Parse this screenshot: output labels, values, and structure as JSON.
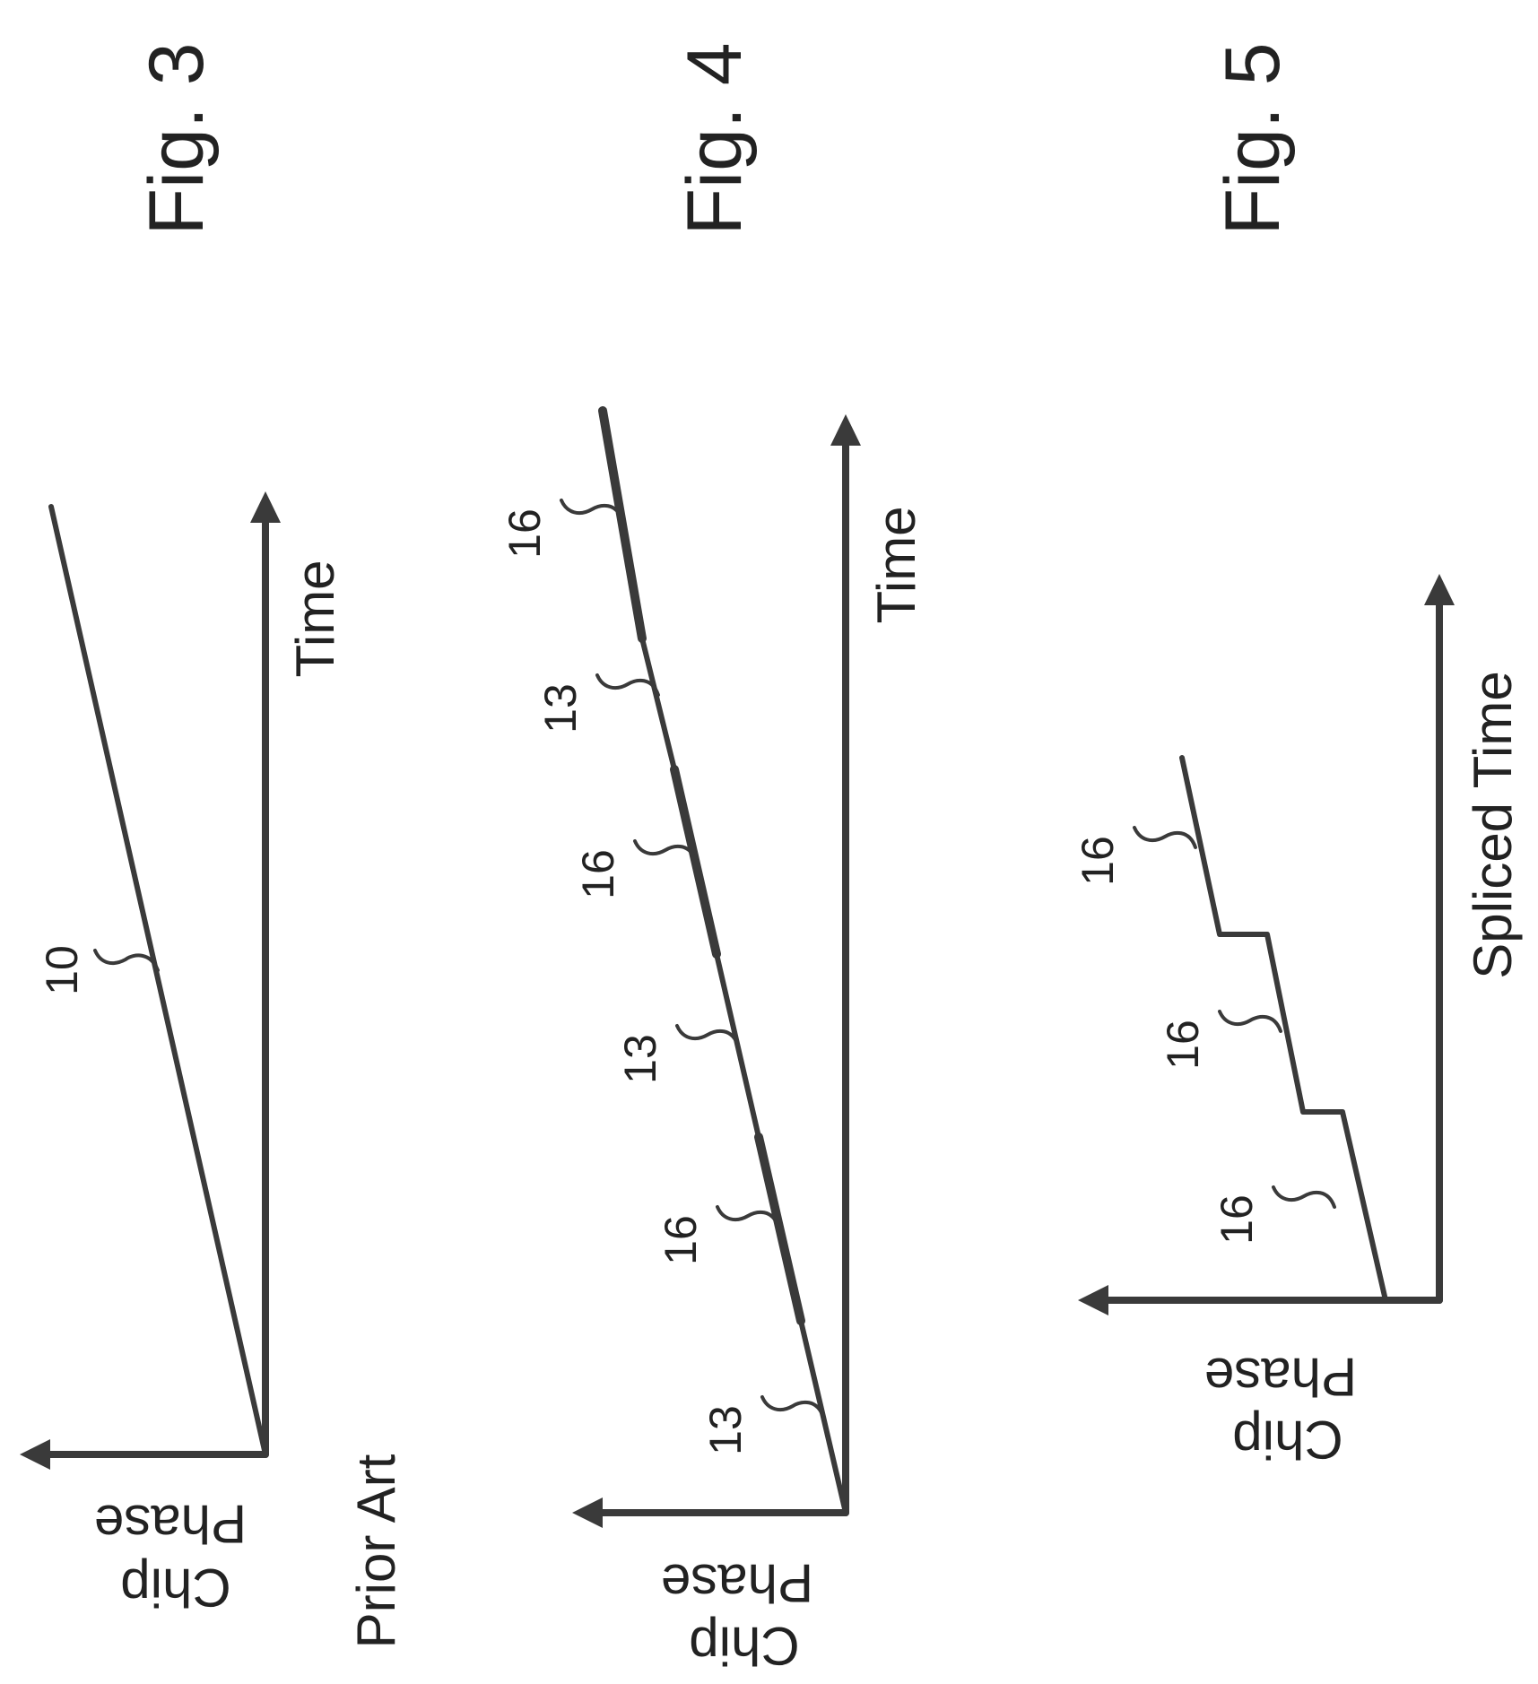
{
  "figures": {
    "fig3": {
      "title": "Fig. 3",
      "axis_y": [
        "Chip",
        "Phase"
      ],
      "axis_x": "Time",
      "note": "Prior Art",
      "refs": [
        "10"
      ]
    },
    "fig4": {
      "title": "Fig. 4",
      "axis_y": [
        "Chip",
        "Phase"
      ],
      "axis_x": "Time",
      "refs": [
        "13",
        "16",
        "13",
        "16",
        "13",
        "16"
      ]
    },
    "fig5": {
      "title": "Fig. 5",
      "axis_y": [
        "Chip",
        "Phase"
      ],
      "axis_x": "Spliced Time",
      "refs": [
        "16",
        "16",
        "16"
      ]
    }
  },
  "colors": {
    "ink": "#3a3a3a",
    "text": "#222222",
    "background": "#ffffff"
  }
}
